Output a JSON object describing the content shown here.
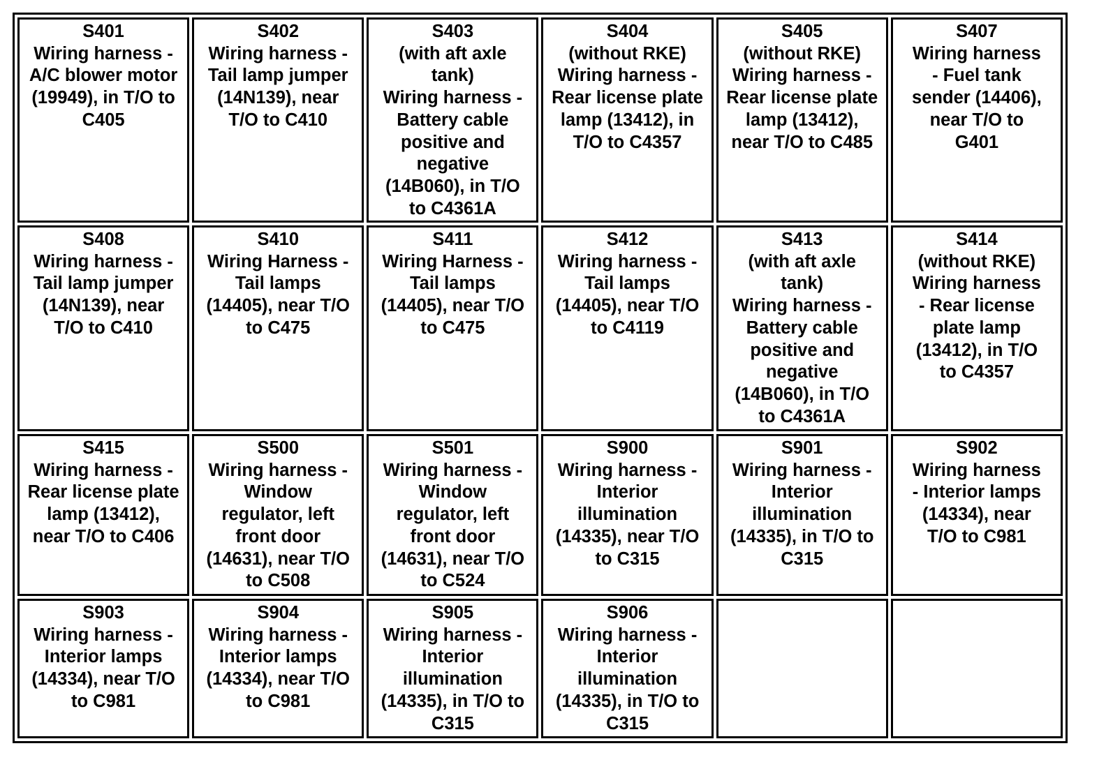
{
  "rows": [
    [
      {
        "id": "S401",
        "lines": [
          "Wiring harness -",
          "A/C blower motor",
          "(19949), in T/O to",
          "C405"
        ]
      },
      {
        "id": "S402",
        "lines": [
          "Wiring harness -",
          "Tail lamp jumper",
          "(14N139), near",
          "T/O to C410"
        ]
      },
      {
        "id": "S403",
        "lines": [
          "(with aft axle",
          "tank)",
          "Wiring harness -",
          "Battery cable",
          "positive and",
          "negative",
          "(14B060), in T/O",
          "to C4361A"
        ]
      },
      {
        "id": "S404",
        "lines": [
          "(without RKE)",
          "Wiring harness -",
          "Rear license plate",
          "lamp (13412), in",
          "T/O to C4357"
        ]
      },
      {
        "id": "S405",
        "lines": [
          "(without RKE)",
          "Wiring harness -",
          "Rear license plate",
          "lamp (13412),",
          "near T/O to C485"
        ]
      },
      {
        "id": "S407",
        "lines": [
          "Wiring harness",
          "- Fuel tank",
          "sender (14406),",
          "near T/O to",
          "G401"
        ]
      }
    ],
    [
      {
        "id": "S408",
        "lines": [
          "Wiring harness -",
          "Tail lamp jumper",
          "(14N139), near",
          "T/O to C410"
        ]
      },
      {
        "id": "S410",
        "lines": [
          "Wiring Harness -",
          "Tail lamps",
          "(14405), near T/O",
          "to C475"
        ]
      },
      {
        "id": "S411",
        "lines": [
          "Wiring Harness -",
          "Tail lamps",
          "(14405), near T/O",
          "to C475"
        ]
      },
      {
        "id": "S412",
        "lines": [
          "Wiring harness -",
          "Tail lamps",
          "(14405), near T/O",
          "to C4119"
        ]
      },
      {
        "id": "S413",
        "lines": [
          "(with aft axle",
          "tank)",
          "Wiring harness -",
          "Battery cable",
          "positive and",
          "negative",
          "(14B060), in T/O",
          "to C4361A"
        ]
      },
      {
        "id": "S414",
        "lines": [
          "(without RKE)",
          "Wiring harness",
          "- Rear license",
          "plate lamp",
          "(13412), in T/O",
          "to C4357"
        ]
      }
    ],
    [
      {
        "id": "S415",
        "lines": [
          "Wiring harness -",
          "Rear license plate",
          "lamp (13412),",
          "near T/O to C406"
        ]
      },
      {
        "id": "S500",
        "lines": [
          "Wiring harness -",
          "Window",
          "regulator, left",
          "front door",
          "(14631), near T/O",
          "to C508"
        ]
      },
      {
        "id": "S501",
        "lines": [
          "Wiring harness -",
          "Window",
          "regulator, left",
          "front door",
          "(14631), near T/O",
          "to C524"
        ]
      },
      {
        "id": "S900",
        "lines": [
          "Wiring harness -",
          "Interior",
          "illumination",
          "(14335), near T/O",
          "to C315"
        ]
      },
      {
        "id": "S901",
        "lines": [
          "Wiring harness -",
          "Interior",
          "illumination",
          "(14335), in T/O to",
          "C315"
        ]
      },
      {
        "id": "S902",
        "lines": [
          "Wiring harness",
          "- Interior lamps",
          "(14334), near",
          "T/O to C981"
        ]
      }
    ],
    [
      {
        "id": "S903",
        "lines": [
          "Wiring harness -",
          "Interior lamps",
          "(14334), near T/O",
          "to C981"
        ]
      },
      {
        "id": "S904",
        "lines": [
          "Wiring harness -",
          "Interior lamps",
          "(14334), near T/O",
          "to C981"
        ]
      },
      {
        "id": "S905",
        "lines": [
          "Wiring harness -",
          "Interior",
          "illumination",
          "(14335), in T/O to",
          "C315"
        ]
      },
      {
        "id": "S906",
        "lines": [
          "Wiring harness -",
          "Interior",
          "illumination",
          "(14335), in T/O to",
          "C315"
        ]
      },
      {
        "id": "",
        "lines": []
      },
      {
        "id": "",
        "lines": []
      }
    ]
  ]
}
